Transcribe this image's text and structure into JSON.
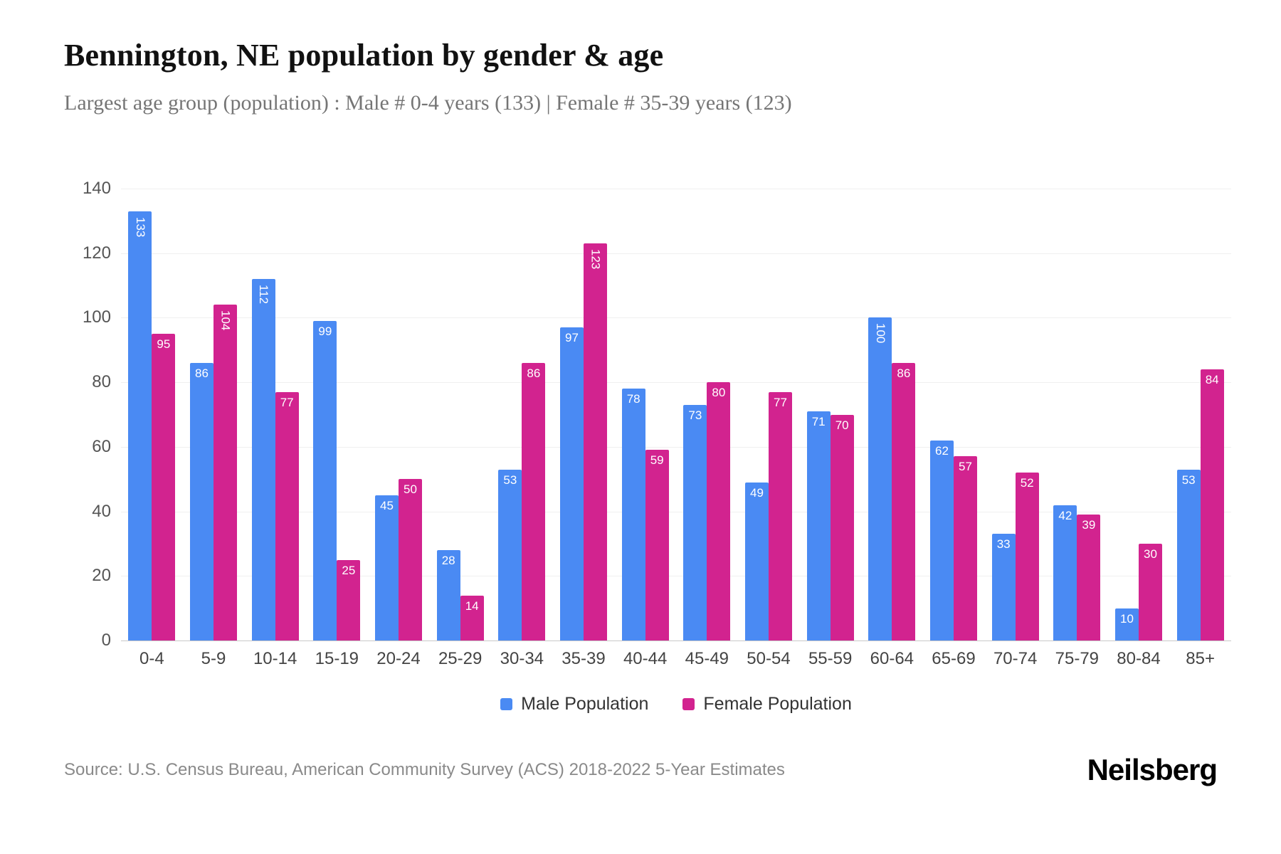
{
  "header": {
    "title": "Bennington, NE population by gender & age",
    "subtitle": "Largest age group (population) : Male # 0-4 years (133) | Female # 35-39 years (123)"
  },
  "chart_data": {
    "type": "bar",
    "title": "Bennington, NE population by gender & age",
    "categories": [
      "0-4",
      "5-9",
      "10-14",
      "15-19",
      "20-24",
      "25-29",
      "30-34",
      "35-39",
      "40-44",
      "45-49",
      "50-54",
      "55-59",
      "60-64",
      "65-69",
      "70-74",
      "75-79",
      "80-84",
      "85+"
    ],
    "series": [
      {
        "name": "Male Population",
        "color": "#4a8af3",
        "values": [
          133,
          86,
          112,
          99,
          45,
          28,
          53,
          97,
          78,
          73,
          49,
          71,
          100,
          62,
          33,
          42,
          10,
          53
        ]
      },
      {
        "name": "Female Population",
        "color": "#d2238f",
        "values": [
          95,
          104,
          77,
          25,
          50,
          14,
          86,
          123,
          59,
          80,
          77,
          70,
          86,
          57,
          52,
          39,
          30,
          84
        ]
      }
    ],
    "xlabel": "",
    "ylabel": "",
    "ylim": [
      0,
      140
    ],
    "yticks": [
      0,
      20,
      40,
      60,
      80,
      100,
      120,
      140
    ],
    "grid": true,
    "legend_position": "bottom",
    "bar_value_labels": "inside-top-white"
  },
  "footer": {
    "source": "Source: U.S. Census Bureau, American Community Survey (ACS) 2018-2022 5-Year Estimates",
    "brand": "Neilsberg"
  }
}
